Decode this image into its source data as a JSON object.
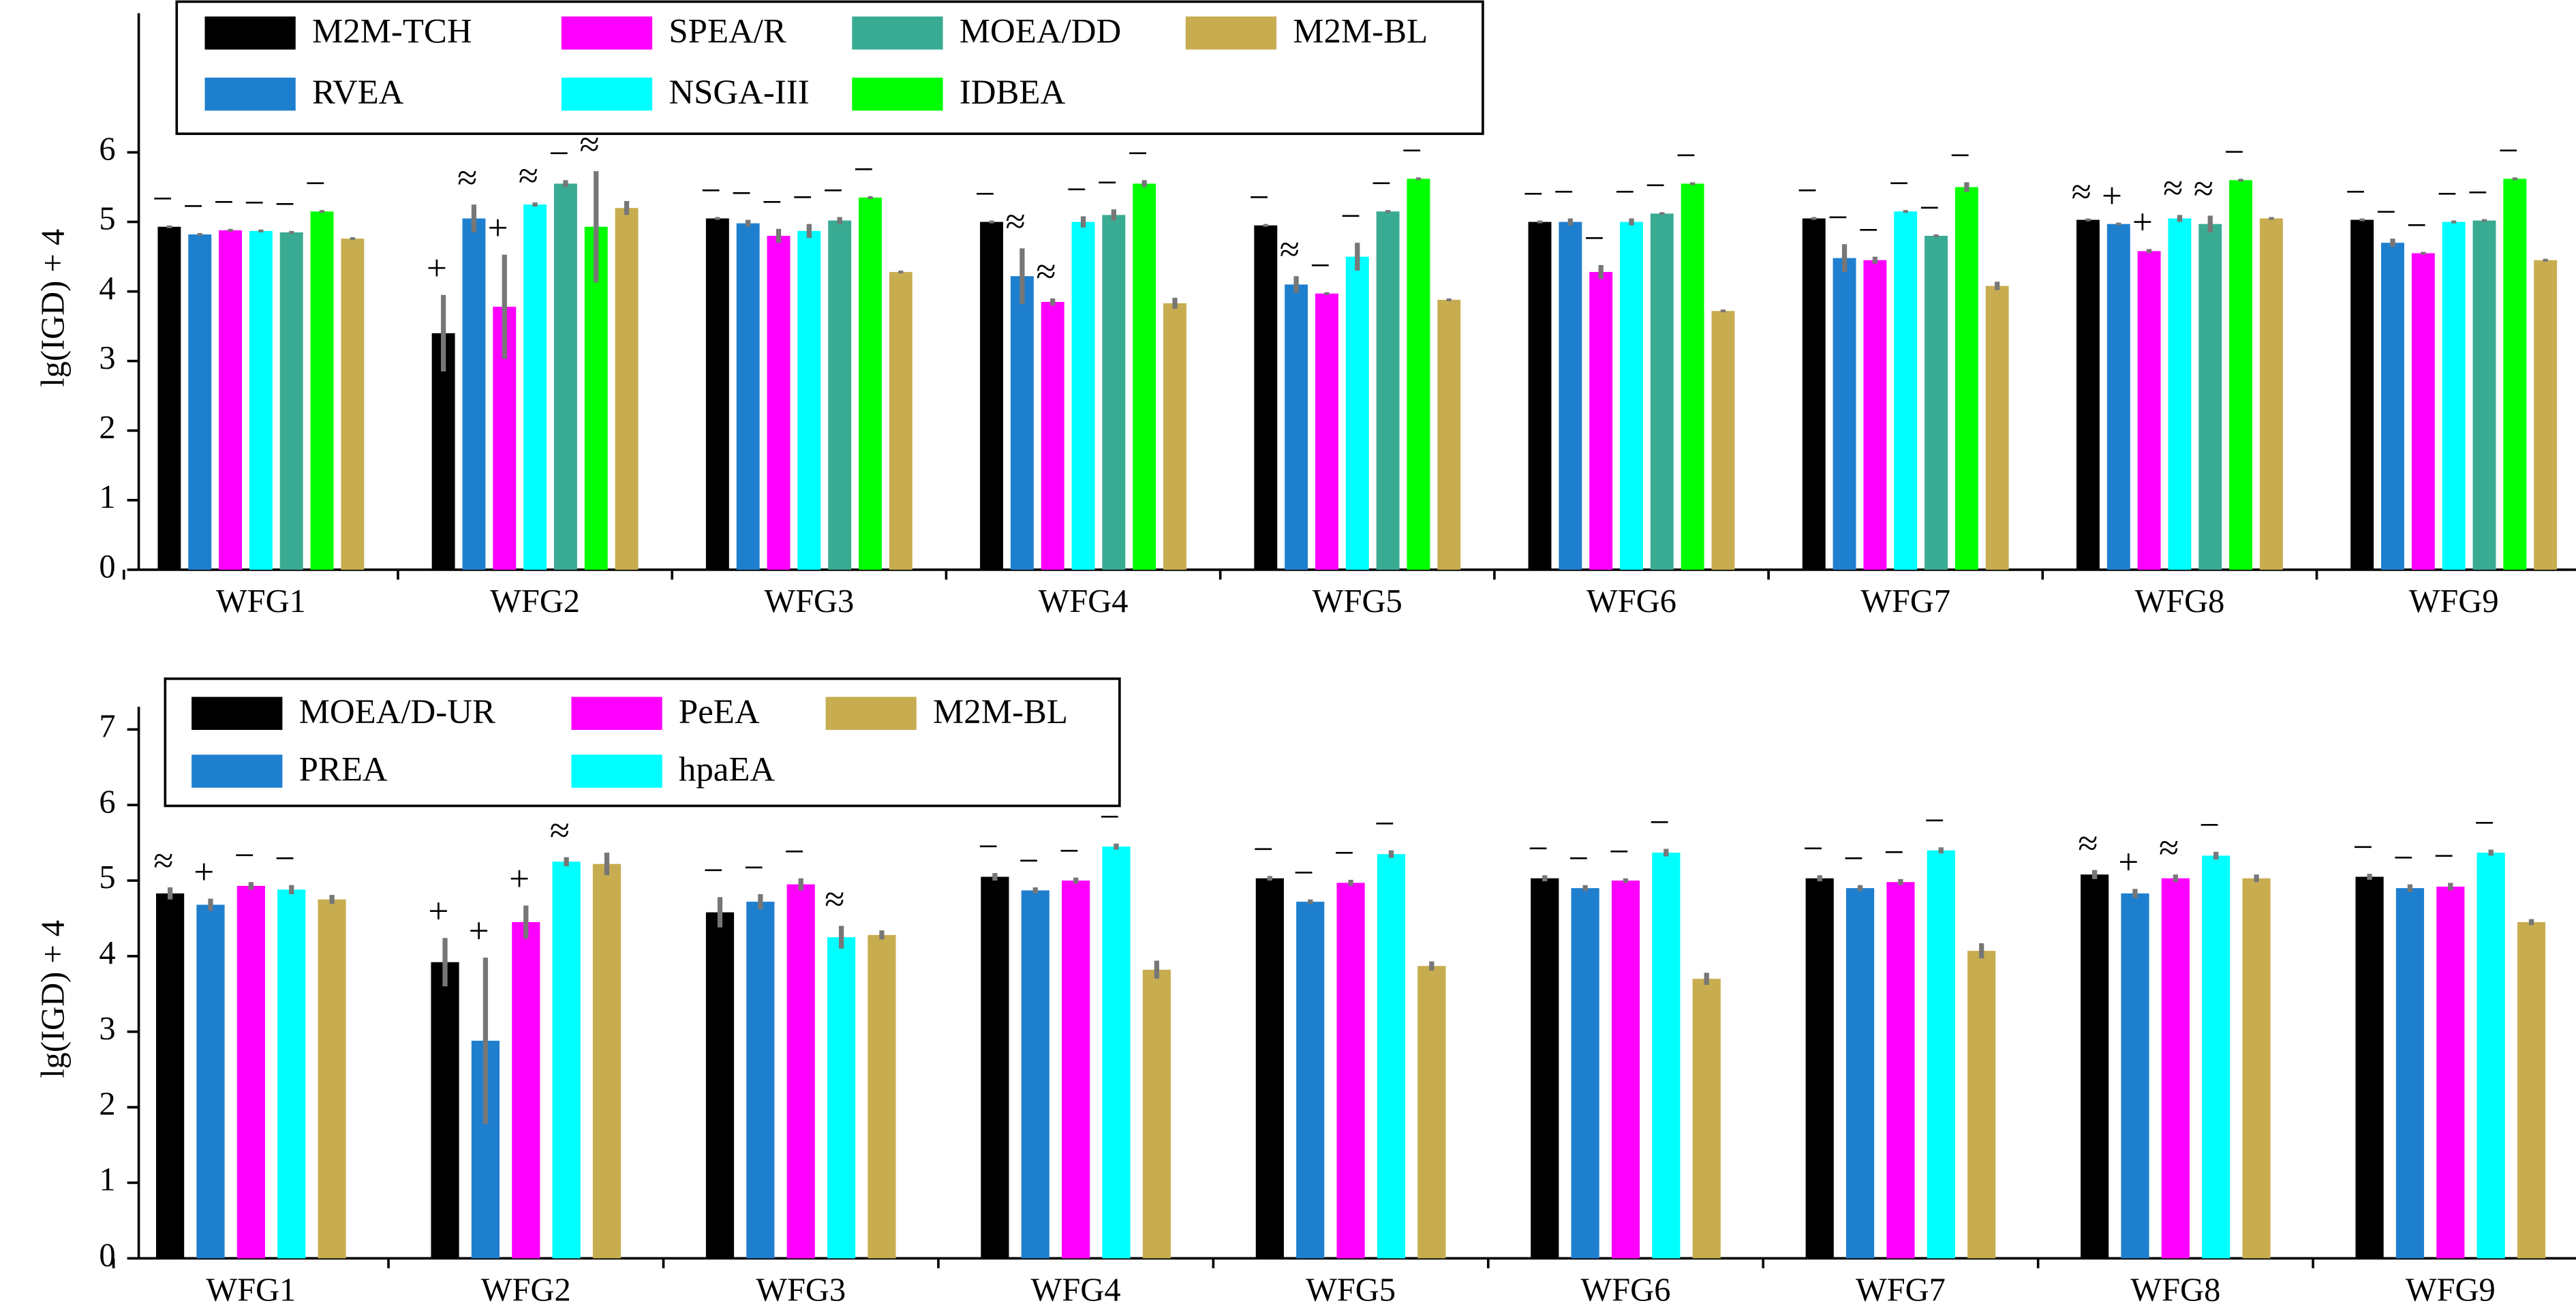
{
  "chart_data": [
    {
      "type": "bar",
      "y_label": "lg(IGD) + 4",
      "ylim": [
        0,
        8
      ],
      "yticks": [
        0,
        1,
        2,
        3,
        4,
        5,
        6
      ],
      "categories": [
        "WFG1",
        "WFG2",
        "WFG3",
        "WFG4",
        "WFG5",
        "WFG6",
        "WFG7",
        "WFG8",
        "WFG9"
      ],
      "series": [
        {
          "name": "M2M-TCH",
          "color": "#000000",
          "values": [
            4.93,
            3.4,
            5.05,
            5.0,
            4.95,
            5.0,
            5.05,
            5.03,
            5.03
          ],
          "errors": [
            0.02,
            0.55,
            0.02,
            0.02,
            0.02,
            0.02,
            0.02,
            0.02,
            0.02
          ],
          "annotations": [
            "−",
            "+",
            "−",
            "−",
            "−",
            "−",
            "−",
            "≈",
            "−"
          ]
        },
        {
          "name": "RVEA",
          "color": "#1f7fcf",
          "values": [
            4.82,
            5.05,
            4.98,
            4.22,
            4.1,
            5.0,
            4.48,
            4.97,
            4.7
          ],
          "errors": [
            0.02,
            0.2,
            0.05,
            0.4,
            0.12,
            0.05,
            0.2,
            0.02,
            0.06
          ],
          "annotations": [
            "−",
            "≈",
            "−",
            "≈",
            "≈",
            "−",
            "−",
            "+",
            "−"
          ]
        },
        {
          "name": "SPEA/R",
          "color": "#ff00ff",
          "values": [
            4.88,
            3.78,
            4.8,
            3.85,
            3.97,
            4.28,
            4.45,
            4.58,
            4.55
          ],
          "errors": [
            0.02,
            0.75,
            0.1,
            0.05,
            0.02,
            0.1,
            0.05,
            0.03,
            0.02
          ],
          "annotations": [
            "−",
            "+",
            "−",
            "≈",
            "−",
            "−",
            "−",
            "+",
            "−"
          ]
        },
        {
          "name": "NSGA-III",
          "color": "#00ffff",
          "values": [
            4.87,
            5.25,
            4.87,
            5.0,
            4.5,
            5.0,
            5.15,
            5.05,
            5.0
          ],
          "errors": [
            0.02,
            0.03,
            0.1,
            0.08,
            0.2,
            0.05,
            0.02,
            0.05,
            0.02
          ],
          "annotations": [
            "−",
            "≈",
            "−",
            "−",
            "−",
            "−",
            "−",
            "≈",
            "−"
          ]
        },
        {
          "name": "MOEA/DD",
          "color": "#3aab93",
          "values": [
            4.85,
            5.55,
            5.02,
            5.1,
            5.15,
            5.12,
            4.8,
            4.97,
            5.02
          ],
          "errors": [
            0.02,
            0.05,
            0.05,
            0.08,
            0.02,
            0.02,
            0.02,
            0.12,
            0.02
          ],
          "annotations": [
            "−",
            "−",
            "−",
            "−",
            "−",
            "−",
            "−",
            "≈",
            "−"
          ]
        },
        {
          "name": "IDBEA",
          "color": "#00ff00",
          "values": [
            5.15,
            4.93,
            5.35,
            5.55,
            5.62,
            5.55,
            5.5,
            5.6,
            5.62
          ],
          "errors": [
            0.02,
            0.8,
            0.02,
            0.05,
            0.02,
            0.02,
            0.07,
            0.02,
            0.02
          ],
          "annotations": [
            "−",
            "≈",
            "−",
            "−",
            "−",
            "−",
            "−",
            "−",
            "−"
          ]
        },
        {
          "name": "M2M-BL",
          "color": "#c8ad50",
          "values": [
            4.76,
            5.2,
            4.28,
            3.83,
            3.88,
            3.72,
            4.08,
            5.05,
            4.45
          ],
          "errors": [
            0.02,
            0.1,
            0.02,
            0.08,
            0.02,
            0.02,
            0.06,
            0.02,
            0.02
          ],
          "annotations": [
            null,
            null,
            null,
            null,
            null,
            null,
            null,
            null,
            null
          ]
        }
      ]
    },
    {
      "type": "bar",
      "y_label": "lg(IGD) + 4",
      "ylim": [
        0,
        7.3
      ],
      "yticks": [
        0,
        1,
        2,
        3,
        4,
        5,
        6,
        7
      ],
      "categories": [
        "WFG1",
        "WFG2",
        "WFG3",
        "WFG4",
        "WFG5",
        "WFG6",
        "WFG7",
        "WFG8",
        "WFG9"
      ],
      "series": [
        {
          "name": "MOEA/D-UR",
          "color": "#000000",
          "values": [
            4.83,
            3.92,
            4.58,
            5.05,
            5.03,
            5.03,
            5.03,
            5.08,
            5.05
          ],
          "errors": [
            0.08,
            0.32,
            0.2,
            0.05,
            0.03,
            0.04,
            0.04,
            0.06,
            0.04
          ],
          "annotations": [
            "≈",
            "+",
            "−",
            "−",
            "−",
            "−",
            "−",
            "≈",
            "−"
          ]
        },
        {
          "name": "PREA",
          "color": "#1f7fcf",
          "values": [
            4.68,
            2.88,
            4.72,
            4.87,
            4.72,
            4.9,
            4.9,
            4.83,
            4.9
          ],
          "errors": [
            0.08,
            1.1,
            0.1,
            0.04,
            0.03,
            0.04,
            0.04,
            0.06,
            0.05
          ],
          "annotations": [
            "+",
            "+",
            "−",
            "−",
            "−",
            "−",
            "−",
            "+",
            "−"
          ]
        },
        {
          "name": "PeEA",
          "color": "#ff00ff",
          "values": [
            4.93,
            4.45,
            4.95,
            5.0,
            4.97,
            5.0,
            4.98,
            5.03,
            4.92
          ],
          "errors": [
            0.05,
            0.22,
            0.08,
            0.04,
            0.04,
            0.03,
            0.04,
            0.05,
            0.05
          ],
          "annotations": [
            "−",
            "+",
            "−",
            "−",
            "−",
            "−",
            "−",
            "≈",
            "−"
          ]
        },
        {
          "name": "hpaEA",
          "color": "#00ffff",
          "values": [
            4.88,
            5.25,
            4.25,
            5.45,
            5.35,
            5.37,
            5.4,
            5.33,
            5.37
          ],
          "errors": [
            0.06,
            0.06,
            0.15,
            0.04,
            0.05,
            0.05,
            0.04,
            0.05,
            0.04
          ],
          "annotations": [
            "−",
            "≈",
            "≈",
            "−",
            "−",
            "−",
            "−",
            "−",
            "−"
          ]
        },
        {
          "name": "M2M-BL",
          "color": "#c8ad50",
          "values": [
            4.75,
            5.22,
            4.28,
            3.82,
            3.87,
            3.7,
            4.07,
            5.03,
            4.45
          ],
          "errors": [
            0.06,
            0.15,
            0.06,
            0.12,
            0.06,
            0.08,
            0.1,
            0.05,
            0.04
          ],
          "annotations": [
            null,
            null,
            null,
            null,
            null,
            null,
            null,
            null,
            null
          ]
        }
      ]
    }
  ]
}
